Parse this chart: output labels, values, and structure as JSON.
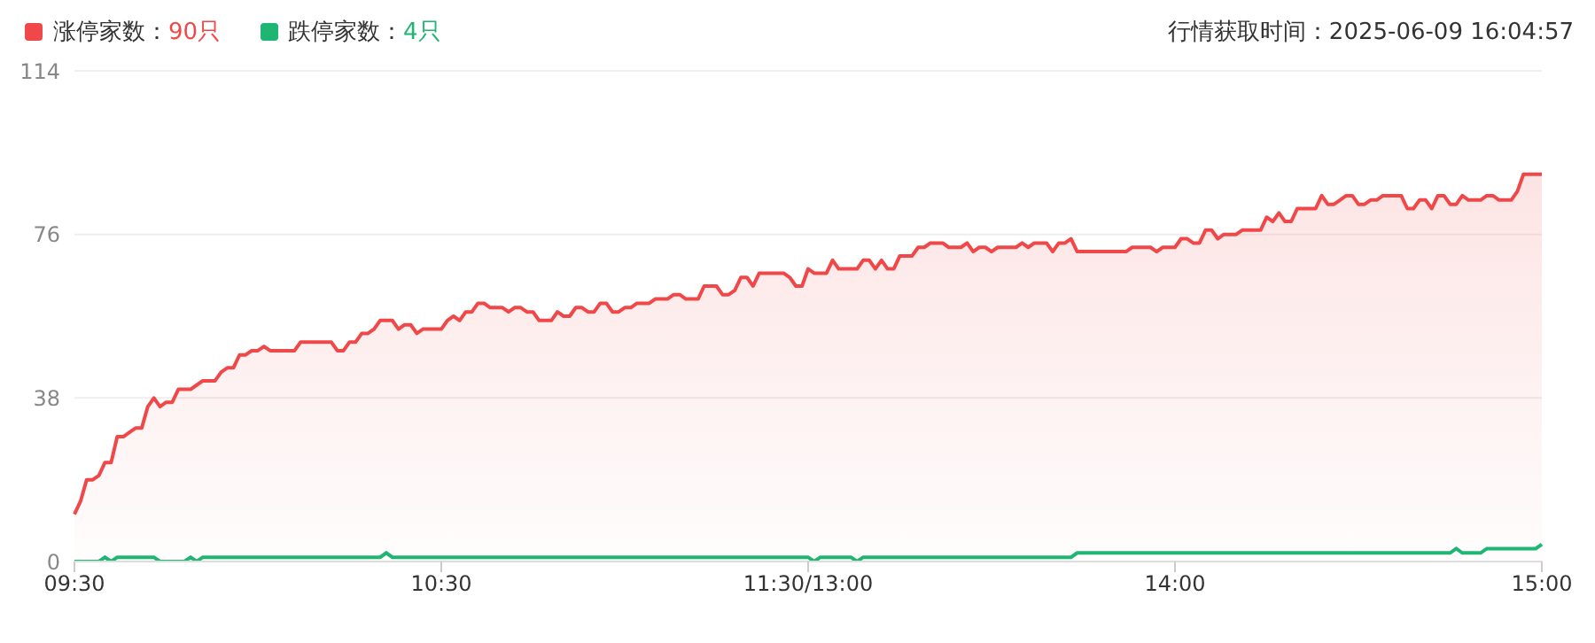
{
  "chart_data": {
    "type": "area",
    "ylim": [
      0,
      114
    ],
    "yticks": [
      0,
      38,
      76,
      114
    ],
    "grid": "y",
    "legend": "top left",
    "annotations": [
      "行情获取时间：2025-06-09 16:04:57"
    ],
    "categories": [
      "09:30",
      null,
      null,
      null,
      null,
      null,
      null,
      null,
      null,
      null,
      null,
      null,
      null,
      null,
      null,
      null,
      null,
      null,
      null,
      null,
      null,
      null,
      null,
      null,
      null,
      null,
      null,
      null,
      null,
      null,
      null,
      null,
      null,
      null,
      null,
      null,
      null,
      null,
      null,
      null,
      null,
      null,
      null,
      null,
      null,
      null,
      null,
      null,
      null,
      null,
      null,
      null,
      null,
      null,
      null,
      null,
      null,
      null,
      null,
      null,
      "10:30",
      null,
      null,
      null,
      null,
      null,
      null,
      null,
      null,
      null,
      null,
      null,
      null,
      null,
      null,
      null,
      null,
      null,
      null,
      null,
      null,
      null,
      null,
      null,
      null,
      null,
      null,
      null,
      null,
      null,
      null,
      null,
      null,
      null,
      null,
      null,
      null,
      null,
      null,
      null,
      null,
      null,
      null,
      null,
      null,
      null,
      null,
      null,
      null,
      null,
      null,
      null,
      null,
      null,
      null,
      null,
      null,
      null,
      null,
      null,
      "11:30/13:00",
      null,
      null,
      null,
      null,
      null,
      null,
      null,
      null,
      null,
      null,
      null,
      null,
      null,
      null,
      null,
      null,
      null,
      null,
      null,
      null,
      null,
      null,
      null,
      null,
      null,
      null,
      null,
      null,
      null,
      null,
      null,
      null,
      null,
      null,
      null,
      null,
      null,
      null,
      null,
      null,
      null,
      null,
      null,
      null,
      null,
      null,
      null,
      null,
      null,
      null,
      null,
      null,
      null,
      null,
      null,
      null,
      null,
      null,
      null,
      "14:00",
      null,
      null,
      null,
      null,
      null,
      null,
      null,
      null,
      null,
      null,
      null,
      null,
      null,
      null,
      null,
      null,
      null,
      null,
      null,
      null,
      null,
      null,
      null,
      null,
      null,
      null,
      null,
      null,
      null,
      null,
      null,
      null,
      null,
      null,
      null,
      null,
      null,
      null,
      null,
      null,
      null,
      null,
      null,
      null,
      null,
      null,
      null,
      null,
      null,
      null,
      null,
      null,
      null,
      null,
      null,
      null,
      null,
      null,
      null,
      "15:00"
    ],
    "series": [
      {
        "name": "涨停家数：90只",
        "color": "#f04848",
        "values": [
          11,
          14,
          19,
          19,
          20,
          23,
          23,
          29,
          29,
          30,
          31,
          31,
          36,
          38,
          36,
          37,
          37,
          40,
          40,
          40,
          41,
          42,
          42,
          42,
          44,
          45,
          45,
          48,
          48,
          49,
          49,
          50,
          49,
          49,
          49,
          49,
          49,
          51,
          51,
          51,
          51,
          51,
          51,
          49,
          49,
          51,
          51,
          53,
          53,
          54,
          56,
          56,
          56,
          54,
          55,
          55,
          53,
          54,
          54,
          54,
          54,
          56,
          57,
          56,
          58,
          58,
          60,
          60,
          59,
          59,
          59,
          58,
          59,
          59,
          58,
          58,
          56,
          56,
          56,
          58,
          57,
          57,
          59,
          59,
          58,
          58,
          60,
          60,
          58,
          58,
          59,
          59,
          60,
          60,
          60,
          61,
          61,
          61,
          62,
          62,
          61,
          61,
          61,
          64,
          64,
          64,
          62,
          62,
          63,
          66,
          66,
          64,
          67,
          67,
          67,
          67,
          67,
          66,
          64,
          64,
          68,
          67,
          67,
          67,
          70,
          68,
          68,
          68,
          68,
          70,
          70,
          68,
          70,
          68,
          68,
          71,
          71,
          71,
          73,
          73,
          74,
          74,
          74,
          73,
          73,
          73,
          74,
          72,
          73,
          73,
          72,
          73,
          73,
          73,
          73,
          74,
          73,
          74,
          74,
          74,
          72,
          74,
          74,
          75,
          72,
          72,
          72,
          72,
          72,
          72,
          72,
          72,
          72,
          73,
          73,
          73,
          73,
          72,
          73,
          73,
          73,
          75,
          75,
          74,
          74,
          77,
          77,
          75,
          76,
          76,
          76,
          77,
          77,
          77,
          77,
          80,
          79,
          81,
          79,
          79,
          82,
          82,
          82,
          82,
          85,
          83,
          83,
          84,
          85,
          85,
          83,
          83,
          84,
          84,
          85,
          85,
          85,
          85,
          82,
          82,
          84,
          84,
          82,
          85,
          85,
          83,
          83,
          85,
          84,
          84,
          84,
          85,
          85,
          84,
          84,
          84,
          86,
          90,
          90,
          90,
          90
        ]
      },
      {
        "name": "跌停家数：4只",
        "type": "line",
        "color": "#1fb573",
        "values": [
          0,
          0,
          0,
          0,
          0,
          1,
          0,
          1,
          1,
          1,
          1,
          1,
          1,
          1,
          0,
          0,
          0,
          0,
          0,
          1,
          0,
          1,
          1,
          1,
          1,
          1,
          1,
          1,
          1,
          1,
          1,
          1,
          1,
          1,
          1,
          1,
          1,
          1,
          1,
          1,
          1,
          1,
          1,
          1,
          1,
          1,
          1,
          1,
          1,
          1,
          1,
          2,
          1,
          1,
          1,
          1,
          1,
          1,
          1,
          1,
          1,
          1,
          1,
          1,
          1,
          1,
          1,
          1,
          1,
          1,
          1,
          1,
          1,
          1,
          1,
          1,
          1,
          1,
          1,
          1,
          1,
          1,
          1,
          1,
          1,
          1,
          1,
          1,
          1,
          1,
          1,
          1,
          1,
          1,
          1,
          1,
          1,
          1,
          1,
          1,
          1,
          1,
          1,
          1,
          1,
          1,
          1,
          1,
          1,
          1,
          1,
          1,
          1,
          1,
          1,
          1,
          1,
          1,
          1,
          1,
          1,
          0,
          1,
          1,
          1,
          1,
          1,
          1,
          0,
          1,
          1,
          1,
          1,
          1,
          1,
          1,
          1,
          1,
          1,
          1,
          1,
          1,
          1,
          1,
          1,
          1,
          1,
          1,
          1,
          1,
          1,
          1,
          1,
          1,
          1,
          1,
          1,
          1,
          1,
          1,
          1,
          1,
          1,
          1,
          2,
          2,
          2,
          2,
          2,
          2,
          2,
          2,
          2,
          2,
          2,
          2,
          2,
          2,
          2,
          2,
          2,
          2,
          2,
          2,
          2,
          2,
          2,
          2,
          2,
          2,
          2,
          2,
          2,
          2,
          2,
          2,
          2,
          2,
          2,
          2,
          2,
          2,
          2,
          2,
          2,
          2,
          2,
          2,
          2,
          2,
          2,
          2,
          2,
          2,
          2,
          2,
          2,
          2,
          2,
          2,
          2,
          2,
          2,
          2,
          2,
          2,
          3,
          2,
          2,
          2,
          2,
          3,
          3,
          3,
          3,
          3,
          3,
          3,
          3,
          3,
          4
        ]
      }
    ]
  }
}
